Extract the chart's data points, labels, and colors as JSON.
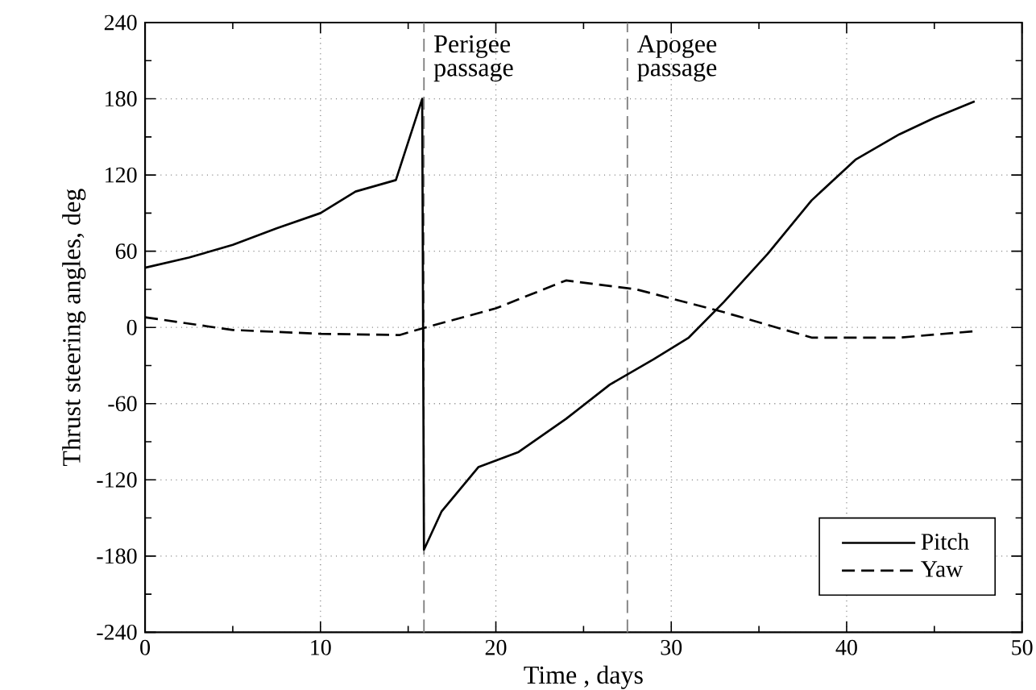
{
  "chart_data": {
    "type": "line",
    "xlabel": "Time , days",
    "ylabel": "Thrust steering angles, deg",
    "xlim": [
      0,
      50
    ],
    "xticks": [
      0,
      10,
      20,
      30,
      40,
      50
    ],
    "ylim": [
      -240,
      240
    ],
    "yticks": [
      -240,
      -180,
      -120,
      -60,
      0,
      60,
      120,
      180,
      240
    ],
    "grid": true,
    "legend": "bottom right",
    "marker": "none",
    "ref_lines": [
      {
        "axis": "x",
        "value": 15.9,
        "label": "Perigee passage",
        "color": "#808080",
        "line_style": "dashed"
      },
      {
        "axis": "x",
        "value": 27.5,
        "label": "Apogee passage",
        "color": "#808080",
        "line_style": "dashed"
      }
    ],
    "series": [
      {
        "name": "Pitch",
        "color": "#000000",
        "line_style": "solid",
        "x": [
          0,
          2.5,
          5,
          7.5,
          10,
          12,
          14.3,
          15.8,
          15.9,
          16.9,
          19,
          21.3,
          24,
          26.5,
          29,
          31,
          33,
          35.5,
          38,
          40.5,
          43,
          45,
          47.3
        ],
        "values": [
          47,
          55,
          65,
          78,
          90,
          107,
          116,
          180,
          -175,
          -145,
          -110,
          -98,
          -72,
          -45,
          -25,
          -8,
          20,
          58,
          100,
          132,
          152,
          165,
          178
        ]
      },
      {
        "name": "Yaw",
        "color": "#000000",
        "line_style": "dashed",
        "x": [
          0,
          5,
          10,
          14.5,
          16,
          20,
          24,
          28,
          33,
          38,
          43,
          47.3
        ],
        "values": [
          8,
          -2,
          -5,
          -6,
          0,
          15,
          37,
          30,
          12,
          -8,
          -8,
          -3
        ]
      }
    ]
  }
}
